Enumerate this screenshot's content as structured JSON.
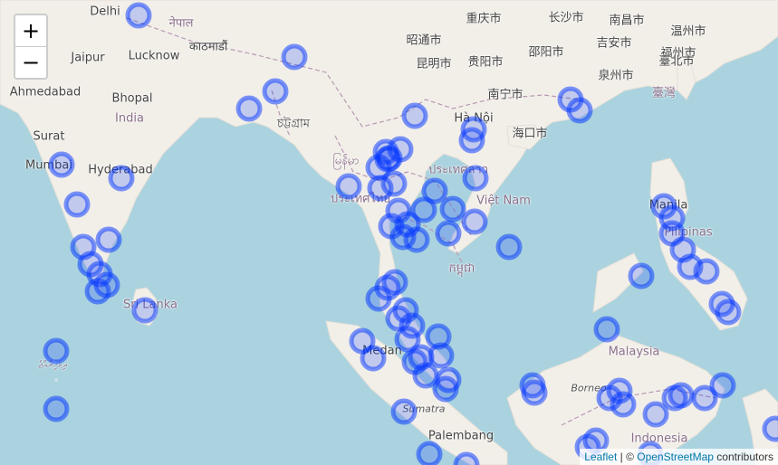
{
  "zoom": {
    "in_label": "+",
    "out_label": "−"
  },
  "attribution": {
    "leaflet": "Leaflet",
    "separator": " | © ",
    "osm": "OpenStreetMap",
    "suffix": " contributors"
  },
  "labels": [
    {
      "text": "Delhi",
      "kind": "place"
    },
    {
      "text": "नेपाल",
      "kind": "country"
    },
    {
      "text": "काठमाडौं",
      "kind": "place"
    },
    {
      "text": "Jaipur",
      "kind": "place"
    },
    {
      "text": "Lucknow",
      "kind": "place"
    },
    {
      "text": "Ahmedabad",
      "kind": "place"
    },
    {
      "text": "Bhopal",
      "kind": "place"
    },
    {
      "text": "India",
      "kind": "country"
    },
    {
      "text": "Surat",
      "kind": "place"
    },
    {
      "text": "Mumbai",
      "kind": "place"
    },
    {
      "text": "Hyderabad",
      "kind": "place"
    },
    {
      "text": "Sri Lanka",
      "kind": "country"
    },
    {
      "text": "ދިވެހިރާއްޖެ",
      "kind": "country"
    },
    {
      "text": "চট্টগ্রাম",
      "kind": "place"
    },
    {
      "text": "重庆市",
      "kind": "place"
    },
    {
      "text": "长沙市",
      "kind": "place"
    },
    {
      "text": "南昌市",
      "kind": "place"
    },
    {
      "text": "温州市",
      "kind": "place"
    },
    {
      "text": "昭通市",
      "kind": "place"
    },
    {
      "text": "邵阳市",
      "kind": "place"
    },
    {
      "text": "吉安市",
      "kind": "place"
    },
    {
      "text": "福州市",
      "kind": "place"
    },
    {
      "text": "昆明市",
      "kind": "place"
    },
    {
      "text": "贵阳市",
      "kind": "place"
    },
    {
      "text": "泉州市",
      "kind": "place"
    },
    {
      "text": "臺北市",
      "kind": "place"
    },
    {
      "text": "臺灣",
      "kind": "country"
    },
    {
      "text": "南宁市",
      "kind": "place"
    },
    {
      "text": "Hà Nội",
      "kind": "place"
    },
    {
      "text": "海口市",
      "kind": "place"
    },
    {
      "text": "မြန်မာ",
      "kind": "country"
    },
    {
      "text": "ประเทศลาว",
      "kind": "country"
    },
    {
      "text": "Việt Nam",
      "kind": "country"
    },
    {
      "text": "ประเทศไทย",
      "kind": "country"
    },
    {
      "text": "កម្ពុជា",
      "kind": "country"
    },
    {
      "text": "Manila",
      "kind": "place"
    },
    {
      "text": "Pilipinas",
      "kind": "country"
    },
    {
      "text": "Medan",
      "kind": "place"
    },
    {
      "text": "Malaysia",
      "kind": "country"
    },
    {
      "text": "Borneo",
      "kind": "island"
    },
    {
      "text": "Sumatra",
      "kind": "island"
    },
    {
      "text": "Palembang",
      "kind": "place"
    },
    {
      "text": "Indonesia",
      "kind": "country"
    }
  ],
  "colors": {
    "water": "#aad3df",
    "land": "#f2efe9",
    "border": "#b79ab3",
    "marker": "#0033ff"
  },
  "markers": {
    "count": 84,
    "style": "circle",
    "color": "#0033ff"
  }
}
